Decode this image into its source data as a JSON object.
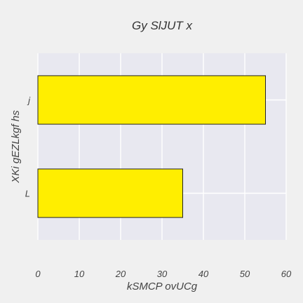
{
  "chart_data": {
    "type": "bar",
    "orientation": "horizontal",
    "title": "Gy  SlJUT  x",
    "xlabel": "kSMCP ovUCg",
    "ylabel": "XKi gEZLkgf hs",
    "categories": [
      "j",
      "L"
    ],
    "series": [
      {
        "values": [
          55,
          35
        ]
      }
    ],
    "xlim": [
      0,
      60
    ],
    "xticks": [
      0,
      10,
      20,
      30,
      40,
      50,
      60
    ],
    "grid": true,
    "legend": false,
    "colors": {
      "bar_fill": "#ffee00",
      "bar_edge": "#222222",
      "plot_background": "#e8e8f0",
      "grid": "#ffffff",
      "page_background": "#f0f0f0"
    }
  }
}
